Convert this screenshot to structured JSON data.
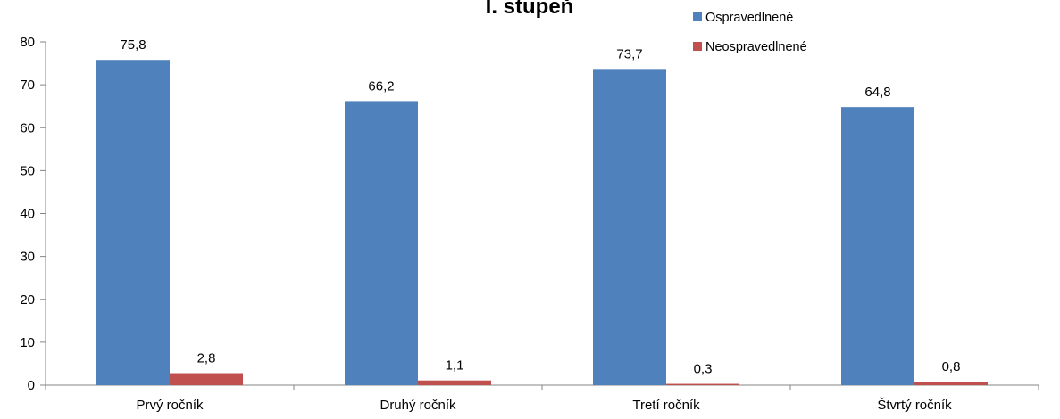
{
  "chart_data": {
    "type": "bar",
    "title": "I. stupeň",
    "xlabel": "",
    "ylabel": "",
    "categories": [
      "Prvý ročník",
      "Druhý ročník",
      "Tretí ročník",
      "Štvrtý ročník"
    ],
    "series": [
      {
        "name": "Ospravedlnené",
        "values": [
          75.8,
          66.2,
          73.7,
          64.8
        ],
        "color": "#4F81BD"
      },
      {
        "name": "Neospravedlnené",
        "values": [
          2.8,
          1.1,
          0.3,
          0.8
        ],
        "color": "#C0504D"
      }
    ],
    "ylim": [
      0,
      80
    ],
    "yticks": [
      0,
      10,
      20,
      30,
      40,
      50,
      60,
      70,
      80
    ],
    "value_labels": {
      "Ospravedlnené": [
        "75,8",
        "66,2",
        "73,7",
        "64,8"
      ],
      "Neospravedlnené": [
        "2,8",
        "1,1",
        "0,3",
        "0,8"
      ]
    },
    "grid": false,
    "legend_position": "top-right"
  }
}
